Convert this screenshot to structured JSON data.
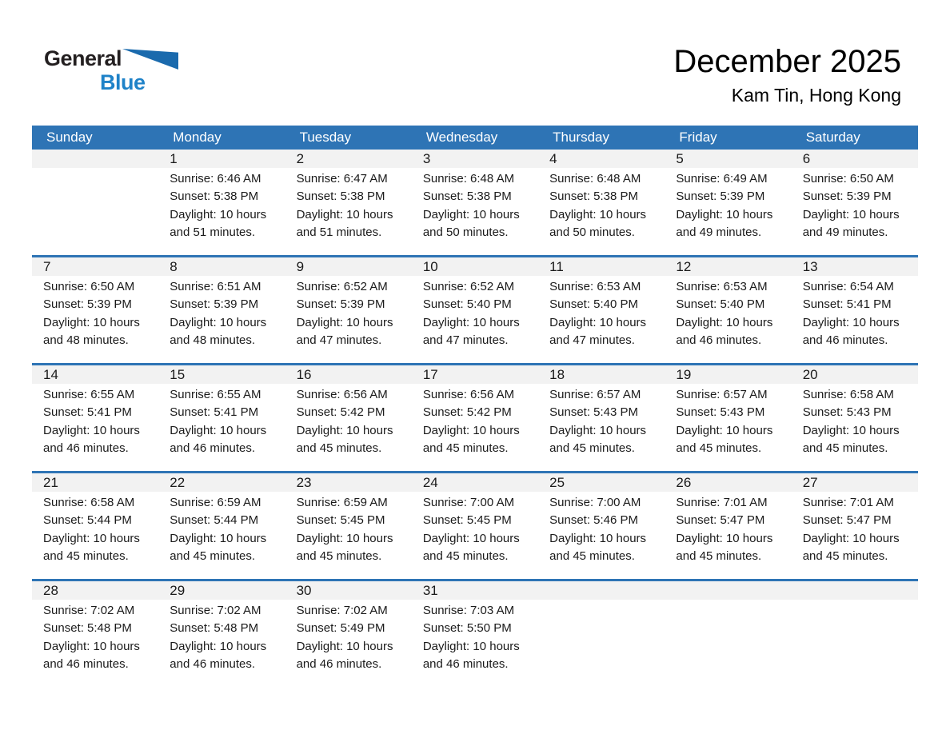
{
  "logo": {
    "general": "General",
    "blue": "Blue"
  },
  "title": "December 2025",
  "subtitle": "Kam Tin, Hong Kong",
  "colors": {
    "header_blue": "#2E74B5",
    "row_line_blue": "#2E74B5",
    "strip_gray": "#F2F2F2",
    "logo_black": "#231F20",
    "logo_blue": "#1E82C8",
    "logo_triangle_blue": "#1A6AAD"
  },
  "weekday_headers": [
    "Sunday",
    "Monday",
    "Tuesday",
    "Wednesday",
    "Thursday",
    "Friday",
    "Saturday"
  ],
  "weeks": [
    [
      {
        "day": "",
        "lines": []
      },
      {
        "day": "1",
        "lines": [
          "Sunrise: 6:46 AM",
          "Sunset: 5:38 PM",
          "Daylight: 10 hours",
          "and 51 minutes."
        ]
      },
      {
        "day": "2",
        "lines": [
          "Sunrise: 6:47 AM",
          "Sunset: 5:38 PM",
          "Daylight: 10 hours",
          "and 51 minutes."
        ]
      },
      {
        "day": "3",
        "lines": [
          "Sunrise: 6:48 AM",
          "Sunset: 5:38 PM",
          "Daylight: 10 hours",
          "and 50 minutes."
        ]
      },
      {
        "day": "4",
        "lines": [
          "Sunrise: 6:48 AM",
          "Sunset: 5:38 PM",
          "Daylight: 10 hours",
          "and 50 minutes."
        ]
      },
      {
        "day": "5",
        "lines": [
          "Sunrise: 6:49 AM",
          "Sunset: 5:39 PM",
          "Daylight: 10 hours",
          "and 49 minutes."
        ]
      },
      {
        "day": "6",
        "lines": [
          "Sunrise: 6:50 AM",
          "Sunset: 5:39 PM",
          "Daylight: 10 hours",
          "and 49 minutes."
        ]
      }
    ],
    [
      {
        "day": "7",
        "lines": [
          "Sunrise: 6:50 AM",
          "Sunset: 5:39 PM",
          "Daylight: 10 hours",
          "and 48 minutes."
        ]
      },
      {
        "day": "8",
        "lines": [
          "Sunrise: 6:51 AM",
          "Sunset: 5:39 PM",
          "Daylight: 10 hours",
          "and 48 minutes."
        ]
      },
      {
        "day": "9",
        "lines": [
          "Sunrise: 6:52 AM",
          "Sunset: 5:39 PM",
          "Daylight: 10 hours",
          "and 47 minutes."
        ]
      },
      {
        "day": "10",
        "lines": [
          "Sunrise: 6:52 AM",
          "Sunset: 5:40 PM",
          "Daylight: 10 hours",
          "and 47 minutes."
        ]
      },
      {
        "day": "11",
        "lines": [
          "Sunrise: 6:53 AM",
          "Sunset: 5:40 PM",
          "Daylight: 10 hours",
          "and 47 minutes."
        ]
      },
      {
        "day": "12",
        "lines": [
          "Sunrise: 6:53 AM",
          "Sunset: 5:40 PM",
          "Daylight: 10 hours",
          "and 46 minutes."
        ]
      },
      {
        "day": "13",
        "lines": [
          "Sunrise: 6:54 AM",
          "Sunset: 5:41 PM",
          "Daylight: 10 hours",
          "and 46 minutes."
        ]
      }
    ],
    [
      {
        "day": "14",
        "lines": [
          "Sunrise: 6:55 AM",
          "Sunset: 5:41 PM",
          "Daylight: 10 hours",
          "and 46 minutes."
        ]
      },
      {
        "day": "15",
        "lines": [
          "Sunrise: 6:55 AM",
          "Sunset: 5:41 PM",
          "Daylight: 10 hours",
          "and 46 minutes."
        ]
      },
      {
        "day": "16",
        "lines": [
          "Sunrise: 6:56 AM",
          "Sunset: 5:42 PM",
          "Daylight: 10 hours",
          "and 45 minutes."
        ]
      },
      {
        "day": "17",
        "lines": [
          "Sunrise: 6:56 AM",
          "Sunset: 5:42 PM",
          "Daylight: 10 hours",
          "and 45 minutes."
        ]
      },
      {
        "day": "18",
        "lines": [
          "Sunrise: 6:57 AM",
          "Sunset: 5:43 PM",
          "Daylight: 10 hours",
          "and 45 minutes."
        ]
      },
      {
        "day": "19",
        "lines": [
          "Sunrise: 6:57 AM",
          "Sunset: 5:43 PM",
          "Daylight: 10 hours",
          "and 45 minutes."
        ]
      },
      {
        "day": "20",
        "lines": [
          "Sunrise: 6:58 AM",
          "Sunset: 5:43 PM",
          "Daylight: 10 hours",
          "and 45 minutes."
        ]
      }
    ],
    [
      {
        "day": "21",
        "lines": [
          "Sunrise: 6:58 AM",
          "Sunset: 5:44 PM",
          "Daylight: 10 hours",
          "and 45 minutes."
        ]
      },
      {
        "day": "22",
        "lines": [
          "Sunrise: 6:59 AM",
          "Sunset: 5:44 PM",
          "Daylight: 10 hours",
          "and 45 minutes."
        ]
      },
      {
        "day": "23",
        "lines": [
          "Sunrise: 6:59 AM",
          "Sunset: 5:45 PM",
          "Daylight: 10 hours",
          "and 45 minutes."
        ]
      },
      {
        "day": "24",
        "lines": [
          "Sunrise: 7:00 AM",
          "Sunset: 5:45 PM",
          "Daylight: 10 hours",
          "and 45 minutes."
        ]
      },
      {
        "day": "25",
        "lines": [
          "Sunrise: 7:00 AM",
          "Sunset: 5:46 PM",
          "Daylight: 10 hours",
          "and 45 minutes."
        ]
      },
      {
        "day": "26",
        "lines": [
          "Sunrise: 7:01 AM",
          "Sunset: 5:47 PM",
          "Daylight: 10 hours",
          "and 45 minutes."
        ]
      },
      {
        "day": "27",
        "lines": [
          "Sunrise: 7:01 AM",
          "Sunset: 5:47 PM",
          "Daylight: 10 hours",
          "and 45 minutes."
        ]
      }
    ],
    [
      {
        "day": "28",
        "lines": [
          "Sunrise: 7:02 AM",
          "Sunset: 5:48 PM",
          "Daylight: 10 hours",
          "and 46 minutes."
        ]
      },
      {
        "day": "29",
        "lines": [
          "Sunrise: 7:02 AM",
          "Sunset: 5:48 PM",
          "Daylight: 10 hours",
          "and 46 minutes."
        ]
      },
      {
        "day": "30",
        "lines": [
          "Sunrise: 7:02 AM",
          "Sunset: 5:49 PM",
          "Daylight: 10 hours",
          "and 46 minutes."
        ]
      },
      {
        "day": "31",
        "lines": [
          "Sunrise: 7:03 AM",
          "Sunset: 5:50 PM",
          "Daylight: 10 hours",
          "and 46 minutes."
        ]
      },
      {
        "day": "",
        "lines": []
      },
      {
        "day": "",
        "lines": []
      },
      {
        "day": "",
        "lines": []
      }
    ]
  ]
}
